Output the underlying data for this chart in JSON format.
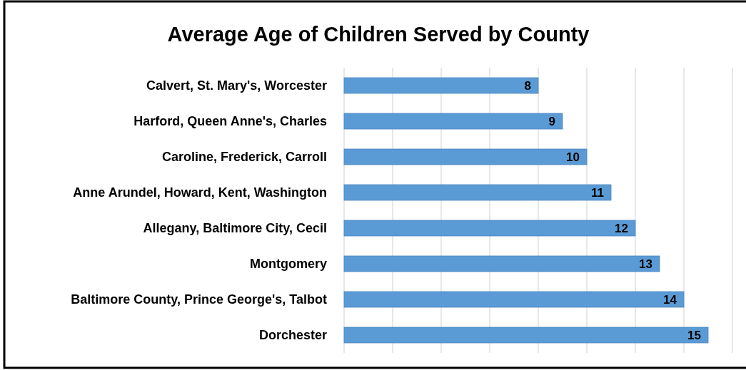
{
  "chart_data": {
    "type": "bar",
    "orientation": "horizontal",
    "title": "Average Age of Children Served by County",
    "categories": [
      "Calvert, St. Mary's, Worcester",
      "Harford, Queen Anne's, Charles",
      "Caroline, Frederick, Carroll",
      "Anne Arundel, Howard, Kent, Washington",
      "Allegany, Baltimore City, Cecil",
      "Montgomery",
      "Baltimore County, Prince George's, Talbot",
      "Dorchester"
    ],
    "values": [
      8,
      9,
      10,
      11,
      12,
      13,
      14,
      15
    ],
    "color": "#5b9bd5",
    "xlim": [
      0,
      16
    ],
    "xticks": [
      {
        "value": 0,
        "label": null
      },
      {
        "value": 2,
        "label": null
      },
      {
        "value": 4,
        "label": null
      },
      {
        "value": 6,
        "label": null
      },
      {
        "value": 8,
        "label": null
      },
      {
        "value": 10,
        "label": null
      },
      {
        "value": 12,
        "label": null
      },
      {
        "value": 14,
        "label": null
      },
      {
        "value": 16,
        "label": null
      }
    ],
    "grid": "x",
    "tick_labels": "y",
    "data_labels": true
  }
}
